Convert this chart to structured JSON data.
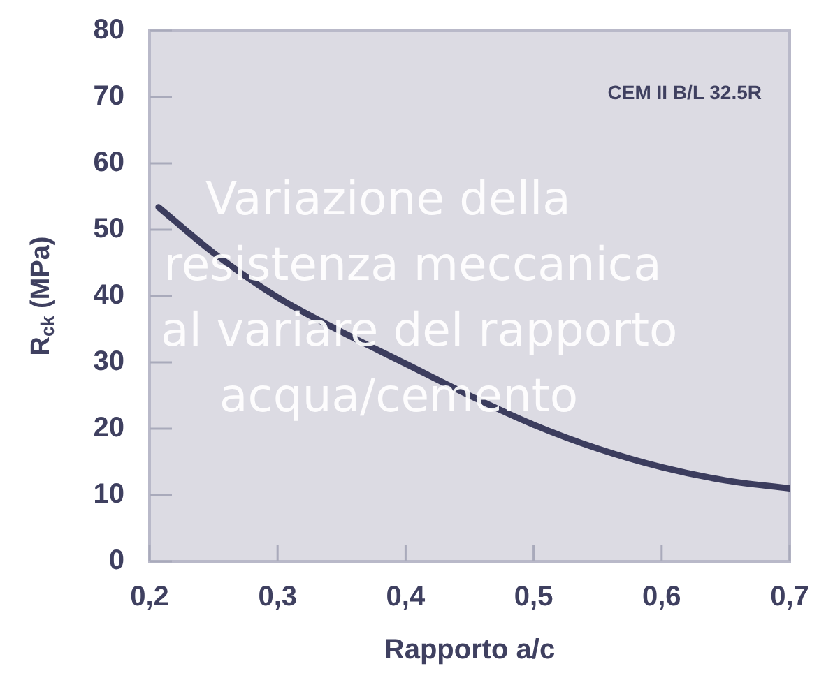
{
  "chart_data": {
    "type": "line",
    "title": "Variazione della resistenza meccanica al variare del rapporto acqua/cemento",
    "xlabel": "Rapporto a/c",
    "ylabel": "R$_{ck}$ (MPa)",
    "annotations": [
      "CEM II B/L 32.5R"
    ],
    "x": [
      0.207,
      0.25,
      0.3,
      0.35,
      0.4,
      0.45,
      0.5,
      0.55,
      0.6,
      0.65,
      0.7
    ],
    "series": [
      {
        "color": "#3c3d5e",
        "values": [
          53.4,
          46.5,
          39.8,
          34.6,
          29.8,
          25,
          20.6,
          17,
          14.2,
          12.2,
          11
        ]
      }
    ],
    "xlim": [
      0.2,
      0.7
    ],
    "xticks": [
      {
        "value": 0.2,
        "label": "0,2"
      },
      {
        "value": 0.3,
        "label": "0,3"
      },
      {
        "value": 0.4,
        "label": "0,4"
      },
      {
        "value": 0.5,
        "label": "0,5"
      },
      {
        "value": 0.6,
        "label": "0,6"
      },
      {
        "value": 0.7,
        "label": "0,7"
      }
    ],
    "ylim": [
      0,
      80
    ],
    "yticks": [
      0,
      10,
      20,
      30,
      40,
      50,
      60,
      70,
      80
    ],
    "grid": false,
    "legend": false,
    "marker": "none",
    "line_style": "solid"
  }
}
